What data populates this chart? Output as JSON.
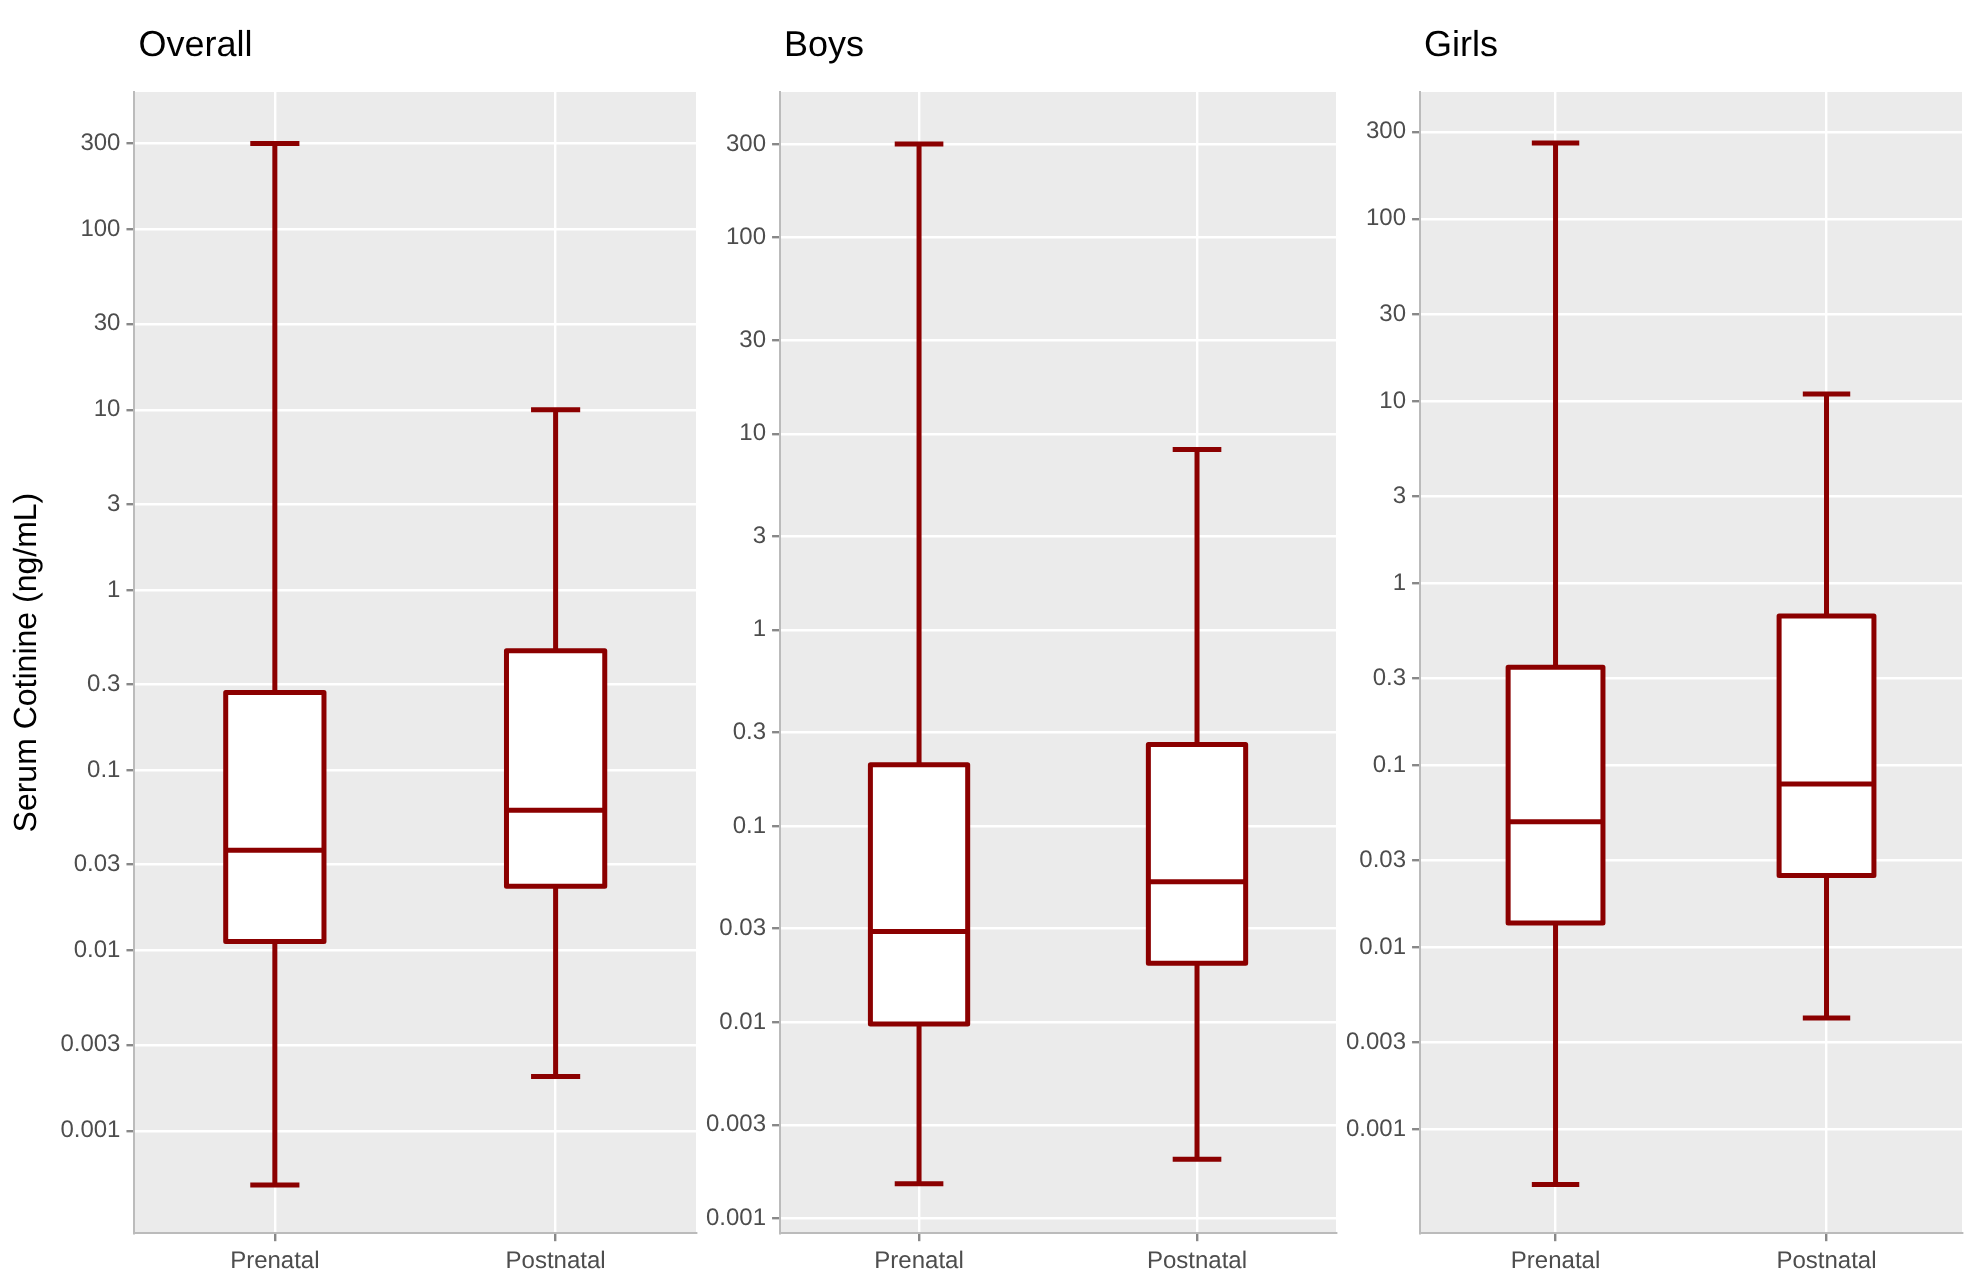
{
  "chart_data": [
    {
      "type": "box",
      "title": "Overall",
      "ylabel": "Serum Cotinine (ng/mL)",
      "categories": [
        "Prenatal",
        "Postnatal"
      ],
      "color": "#8b0000",
      "log": "y",
      "grid": true,
      "ylim": [
        0.00027,
        580
      ],
      "yticks": [
        0.001,
        0.003,
        0.01,
        0.03,
        0.1,
        0.3,
        1,
        3,
        10,
        30,
        100,
        300
      ],
      "boxes": [
        {
          "low": 0.0005,
          "q1": 0.0112,
          "median": 0.036,
          "q3": 0.27,
          "high": 300
        },
        {
          "low": 0.002,
          "q1": 0.0227,
          "median": 0.06,
          "q3": 0.46,
          "high": 10
        }
      ]
    },
    {
      "type": "box",
      "title": "Boys",
      "categories": [
        "Prenatal",
        "Postnatal"
      ],
      "color": "#8b0000",
      "log": "y",
      "grid": true,
      "ylim": [
        0.00084,
        552
      ],
      "yticks": [
        0.001,
        0.003,
        0.01,
        0.03,
        0.1,
        0.3,
        1,
        3,
        10,
        30,
        100,
        300
      ],
      "boxes": [
        {
          "low": 0.0015,
          "q1": 0.0098,
          "median": 0.029,
          "q3": 0.205,
          "high": 300
        },
        {
          "low": 0.002,
          "q1": 0.02,
          "median": 0.052,
          "q3": 0.26,
          "high": 8.3
        }
      ]
    },
    {
      "type": "box",
      "title": "Girls",
      "categories": [
        "Prenatal",
        "Postnatal"
      ],
      "color": "#8b0000",
      "log": "y",
      "grid": true,
      "ylim": [
        0.00027,
        496
      ],
      "yticks": [
        0.001,
        0.003,
        0.01,
        0.03,
        0.1,
        0.3,
        1,
        3,
        10,
        30,
        100,
        300
      ],
      "boxes": [
        {
          "low": 0.0005,
          "q1": 0.0136,
          "median": 0.049,
          "q3": 0.345,
          "high": 260
        },
        {
          "low": 0.0041,
          "q1": 0.0248,
          "median": 0.079,
          "q3": 0.66,
          "high": 10.9
        }
      ]
    }
  ]
}
